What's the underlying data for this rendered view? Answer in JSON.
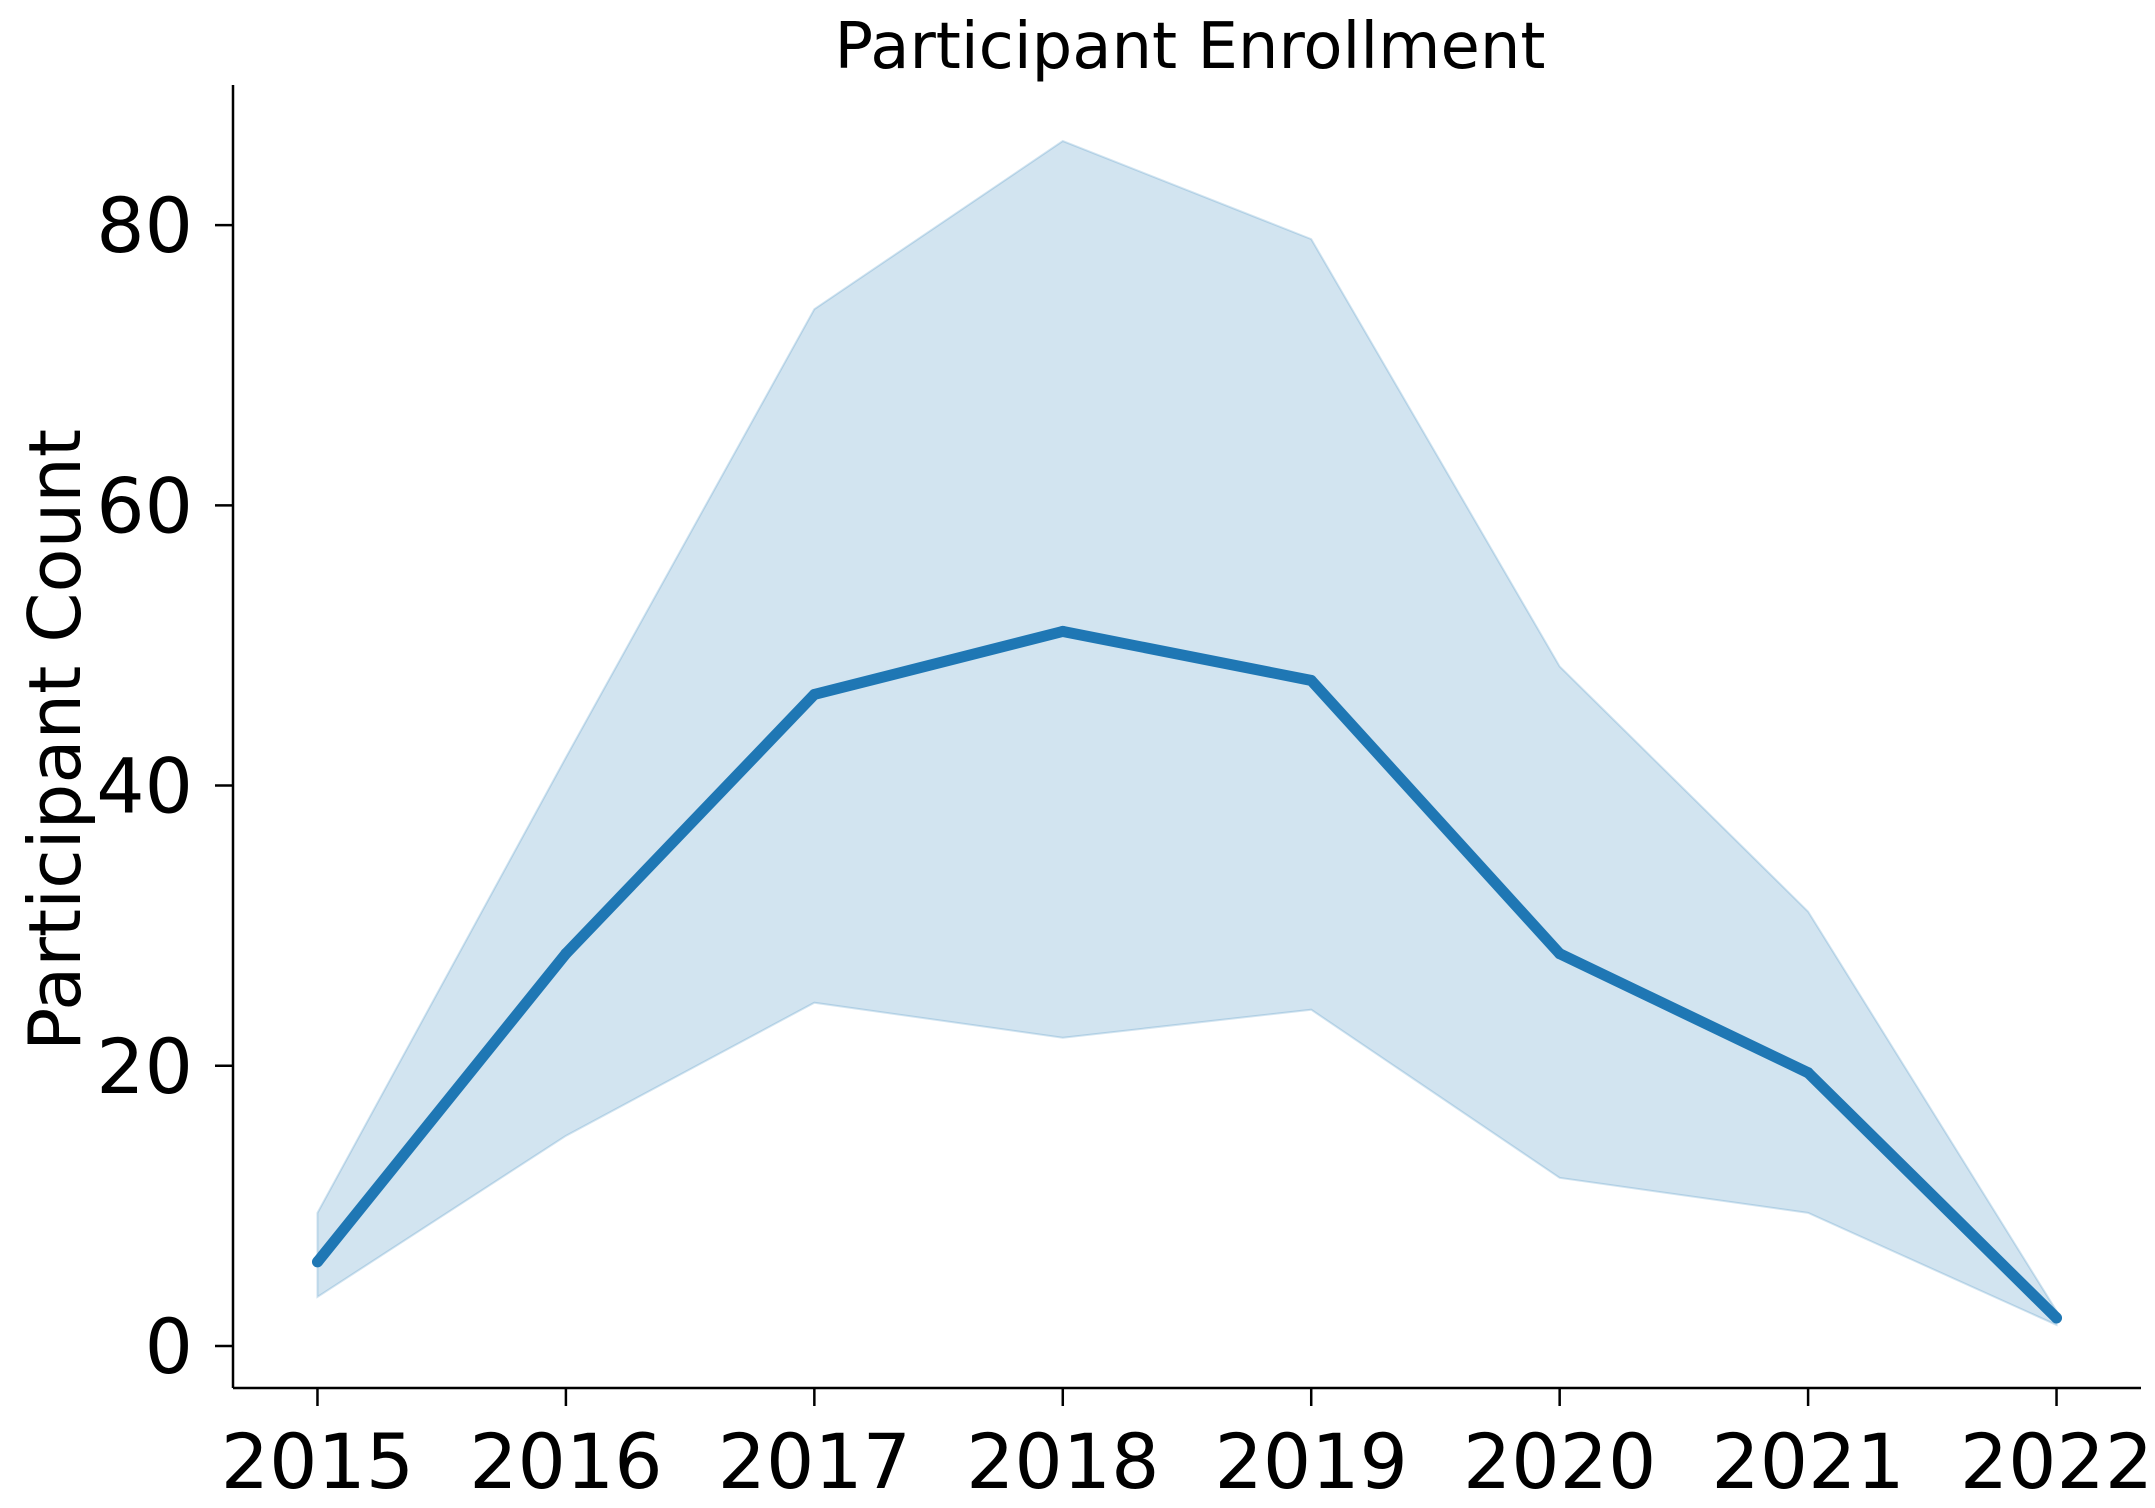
{
  "chart_data": {
    "type": "line",
    "title": "Participant Enrollment",
    "xlabel": "",
    "ylabel": "Participant Count",
    "x": [
      2015,
      2016,
      2017,
      2018,
      2019,
      2020,
      2021,
      2022
    ],
    "series": [
      {
        "values": [
          6,
          28,
          46.5,
          51,
          47.5,
          28,
          19.5,
          2
        ],
        "lower": [
          3.5,
          15,
          24.5,
          22,
          24,
          12,
          9.5,
          1.5
        ],
        "upper": [
          9.5,
          42,
          74,
          86,
          79,
          48.5,
          31,
          2.5
        ],
        "color": "#1f77b4",
        "band_color": "#1f77b4"
      }
    ],
    "yticks": [
      0,
      20,
      40,
      60,
      80
    ],
    "ylim": [
      -3,
      90
    ],
    "xlim": [
      2014.66,
      2022.34
    ],
    "grid": false,
    "legend": false
  }
}
